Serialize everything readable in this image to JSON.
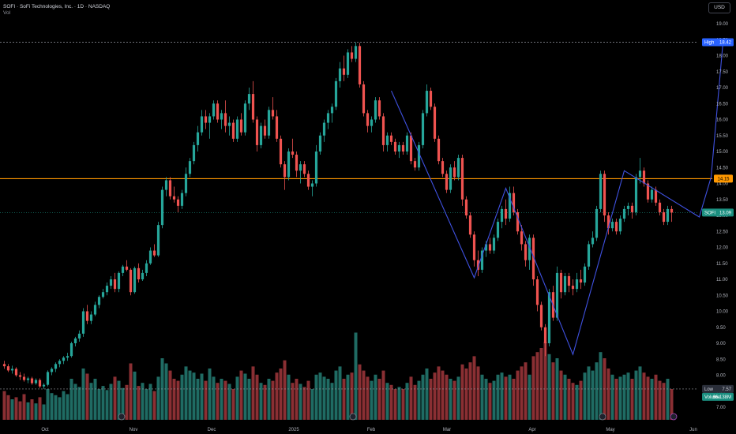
{
  "header": {
    "title": "SOFI · SoFi Technologies, Inc. · 1D · NASDAQ",
    "vol_label": "Vol",
    "currency_button": "USD"
  },
  "colors": {
    "up": "#26a69a",
    "down": "#ef5350",
    "up_vol": "#1f6b63",
    "down_vol": "#8a2f33",
    "hline": "#ff9800",
    "pattern": "#3f51e0",
    "last_price": "#1b8f80",
    "high_label": "#2962ff"
  },
  "chart_data": {
    "type": "candlestick",
    "y_axis": {
      "min": 7.0,
      "max": 19.0,
      "step": 0.5,
      "side": "right"
    },
    "x_labels": [
      "Oct",
      "Nov",
      "Dec",
      "2025",
      "Feb",
      "Mar",
      "Apr",
      "May",
      "Jun"
    ],
    "grid": false,
    "horizontal_level": {
      "value": 14.15,
      "label": "14.15"
    },
    "high": {
      "label": "High",
      "value": "18.42",
      "price": 18.42
    },
    "low": {
      "label": "Low",
      "value": "7.57",
      "price": 7.57
    },
    "last_price": {
      "label": "SOFI",
      "value": "13.09",
      "price": 13.09
    },
    "volume": {
      "label": "Volume",
      "value": "66.138M"
    },
    "ohlc": [
      [
        8.35,
        8.45,
        8.2,
        8.28
      ],
      [
        8.28,
        8.35,
        8.1,
        8.15
      ],
      [
        8.15,
        8.3,
        8.05,
        8.2
      ],
      [
        8.2,
        8.25,
        7.95,
        8.0
      ],
      [
        8.0,
        8.1,
        7.85,
        7.95
      ],
      [
        7.95,
        8.05,
        7.8,
        7.85
      ],
      [
        7.85,
        7.95,
        7.75,
        7.9
      ],
      [
        7.9,
        7.95,
        7.7,
        7.75
      ],
      [
        7.75,
        7.9,
        7.7,
        7.85
      ],
      [
        7.85,
        7.9,
        7.6,
        7.65
      ],
      [
        7.65,
        7.75,
        7.57,
        7.7
      ],
      [
        7.7,
        8.15,
        7.65,
        8.1
      ],
      [
        8.1,
        8.25,
        8.0,
        8.2
      ],
      [
        8.2,
        8.4,
        8.1,
        8.35
      ],
      [
        8.35,
        8.5,
        8.25,
        8.45
      ],
      [
        8.45,
        8.6,
        8.35,
        8.55
      ],
      [
        8.55,
        8.7,
        8.45,
        8.6
      ],
      [
        8.6,
        9.05,
        8.55,
        9.0
      ],
      [
        9.0,
        9.2,
        8.9,
        9.15
      ],
      [
        9.15,
        9.4,
        9.05,
        9.3
      ],
      [
        9.3,
        10.1,
        9.2,
        10.0
      ],
      [
        10.0,
        10.2,
        9.6,
        9.7
      ],
      [
        9.7,
        10.0,
        9.6,
        9.9
      ],
      [
        9.9,
        10.3,
        9.85,
        10.2
      ],
      [
        10.2,
        10.5,
        10.1,
        10.45
      ],
      [
        10.45,
        10.7,
        10.4,
        10.6
      ],
      [
        10.6,
        10.9,
        10.5,
        10.8
      ],
      [
        10.8,
        11.1,
        10.7,
        11.0
      ],
      [
        11.0,
        11.2,
        10.6,
        10.7
      ],
      [
        10.7,
        11.25,
        10.6,
        11.2
      ],
      [
        11.2,
        11.45,
        11.1,
        11.4
      ],
      [
        11.4,
        11.6,
        11.25,
        11.3
      ],
      [
        11.3,
        11.35,
        10.5,
        10.6
      ],
      [
        10.6,
        11.4,
        10.55,
        11.35
      ],
      [
        11.35,
        11.5,
        10.9,
        11.0
      ],
      [
        11.0,
        11.3,
        10.95,
        11.2
      ],
      [
        11.2,
        11.6,
        11.1,
        11.5
      ],
      [
        11.5,
        12.0,
        11.45,
        11.9
      ],
      [
        11.9,
        12.1,
        11.7,
        11.75
      ],
      [
        11.75,
        12.8,
        11.7,
        12.7
      ],
      [
        12.7,
        13.9,
        12.6,
        13.8
      ],
      [
        13.8,
        14.2,
        13.6,
        14.1
      ],
      [
        14.1,
        14.2,
        13.5,
        13.6
      ],
      [
        13.6,
        13.9,
        13.4,
        13.5
      ],
      [
        13.5,
        13.6,
        13.1,
        13.3
      ],
      [
        13.3,
        13.8,
        13.2,
        13.7
      ],
      [
        13.7,
        14.5,
        13.6,
        14.3
      ],
      [
        14.3,
        14.8,
        14.2,
        14.7
      ],
      [
        14.7,
        15.3,
        14.6,
        15.2
      ],
      [
        15.2,
        15.8,
        15.0,
        15.6
      ],
      [
        15.6,
        16.3,
        15.5,
        16.1
      ],
      [
        16.1,
        16.3,
        15.7,
        15.9
      ],
      [
        15.9,
        16.2,
        15.4,
        16.1
      ],
      [
        16.1,
        16.6,
        16.0,
        16.5
      ],
      [
        16.5,
        16.6,
        15.9,
        16.0
      ],
      [
        16.0,
        16.3,
        15.7,
        16.2
      ],
      [
        16.2,
        16.6,
        15.6,
        15.8
      ],
      [
        15.8,
        16.1,
        15.5,
        15.9
      ],
      [
        15.9,
        16.0,
        15.3,
        15.4
      ],
      [
        15.4,
        16.1,
        15.3,
        16.0
      ],
      [
        16.0,
        16.2,
        15.5,
        15.6
      ],
      [
        15.6,
        16.6,
        15.5,
        16.5
      ],
      [
        16.5,
        17.0,
        16.3,
        16.8
      ],
      [
        16.8,
        17.2,
        15.9,
        16.0
      ],
      [
        16.0,
        16.1,
        15.0,
        15.2
      ],
      [
        15.2,
        15.9,
        15.1,
        15.8
      ],
      [
        15.8,
        16.0,
        15.4,
        15.5
      ],
      [
        15.5,
        16.4,
        15.4,
        16.3
      ],
      [
        16.3,
        16.7,
        16.0,
        16.1
      ],
      [
        16.1,
        16.3,
        15.3,
        15.4
      ],
      [
        15.4,
        15.5,
        14.5,
        14.6
      ],
      [
        14.6,
        14.7,
        13.8,
        14.2
      ],
      [
        14.2,
        15.1,
        14.1,
        15.0
      ],
      [
        15.0,
        15.4,
        14.8,
        14.9
      ],
      [
        14.9,
        15.0,
        14.2,
        14.4
      ],
      [
        14.4,
        14.7,
        14.0,
        14.6
      ],
      [
        14.6,
        14.7,
        14.2,
        14.3
      ],
      [
        14.3,
        14.4,
        13.8,
        13.9
      ],
      [
        13.9,
        14.1,
        13.6,
        14.0
      ],
      [
        14.0,
        15.2,
        13.9,
        15.0
      ],
      [
        15.0,
        15.6,
        14.9,
        15.5
      ],
      [
        15.5,
        16.0,
        15.3,
        15.9
      ],
      [
        15.9,
        16.3,
        15.7,
        16.2
      ],
      [
        16.2,
        16.5,
        15.9,
        16.4
      ],
      [
        16.4,
        17.3,
        16.3,
        17.2
      ],
      [
        17.2,
        17.8,
        17.0,
        17.6
      ],
      [
        17.6,
        18.0,
        17.2,
        17.4
      ],
      [
        17.4,
        18.2,
        17.3,
        18.1
      ],
      [
        18.1,
        18.3,
        17.8,
        17.9
      ],
      [
        17.9,
        18.42,
        17.8,
        18.3
      ],
      [
        18.3,
        18.4,
        17.0,
        17.1
      ],
      [
        17.1,
        17.2,
        16.1,
        16.2
      ],
      [
        16.2,
        16.3,
        15.6,
        15.8
      ],
      [
        15.8,
        16.1,
        15.6,
        16.0
      ],
      [
        16.0,
        16.7,
        15.9,
        16.6
      ],
      [
        16.6,
        16.7,
        16.0,
        16.1
      ],
      [
        16.1,
        16.2,
        15.0,
        15.2
      ],
      [
        15.2,
        15.6,
        15.0,
        15.5
      ],
      [
        15.5,
        15.6,
        15.2,
        15.3
      ],
      [
        15.3,
        15.4,
        14.9,
        15.0
      ],
      [
        15.0,
        15.3,
        14.8,
        15.2
      ],
      [
        15.2,
        15.3,
        14.9,
        15.0
      ],
      [
        15.0,
        15.6,
        14.9,
        15.5
      ],
      [
        15.5,
        15.6,
        14.6,
        14.7
      ],
      [
        14.7,
        14.8,
        14.4,
        14.5
      ],
      [
        14.5,
        15.3,
        14.4,
        15.2
      ],
      [
        15.2,
        16.3,
        15.1,
        16.2
      ],
      [
        16.2,
        17.1,
        16.1,
        16.9
      ],
      [
        16.9,
        17.0,
        16.3,
        16.4
      ],
      [
        16.4,
        16.5,
        15.3,
        15.4
      ],
      [
        15.4,
        15.5,
        14.6,
        14.7
      ],
      [
        14.7,
        14.8,
        14.2,
        14.3
      ],
      [
        14.3,
        14.4,
        13.7,
        13.8
      ],
      [
        13.8,
        14.6,
        13.7,
        14.5
      ],
      [
        14.5,
        14.7,
        14.1,
        14.2
      ],
      [
        14.2,
        14.9,
        14.1,
        14.8
      ],
      [
        14.8,
        14.9,
        13.3,
        13.5
      ],
      [
        13.5,
        13.6,
        12.9,
        13.0
      ],
      [
        13.0,
        13.1,
        12.3,
        12.4
      ],
      [
        12.4,
        12.5,
        11.4,
        11.6
      ],
      [
        11.6,
        11.9,
        11.1,
        11.3
      ],
      [
        11.3,
        12.0,
        11.2,
        11.9
      ],
      [
        11.9,
        12.2,
        11.7,
        12.1
      ],
      [
        12.1,
        12.3,
        11.8,
        11.9
      ],
      [
        11.9,
        12.4,
        11.8,
        12.3
      ],
      [
        12.3,
        12.9,
        12.2,
        12.8
      ],
      [
        12.8,
        13.3,
        12.6,
        13.2
      ],
      [
        13.2,
        13.5,
        12.7,
        12.9
      ],
      [
        12.9,
        13.9,
        12.8,
        13.7
      ],
      [
        13.7,
        13.9,
        13.0,
        13.1
      ],
      [
        13.1,
        13.2,
        12.4,
        12.5
      ],
      [
        12.5,
        12.7,
        11.9,
        12.1
      ],
      [
        12.1,
        12.2,
        11.4,
        11.6
      ],
      [
        11.6,
        12.4,
        11.3,
        12.3
      ],
      [
        12.3,
        12.4,
        10.8,
        11.0
      ],
      [
        11.0,
        11.1,
        10.0,
        10.2
      ],
      [
        10.2,
        10.3,
        9.4,
        9.5
      ],
      [
        9.5,
        9.6,
        8.6,
        9.0
      ],
      [
        9.0,
        10.7,
        8.9,
        10.6
      ],
      [
        10.6,
        10.8,
        9.7,
        9.8
      ],
      [
        9.8,
        11.4,
        9.7,
        11.2
      ],
      [
        11.2,
        11.3,
        10.4,
        10.6
      ],
      [
        10.6,
        11.2,
        10.5,
        11.1
      ],
      [
        11.1,
        11.2,
        10.6,
        10.8
      ],
      [
        10.8,
        11.0,
        10.5,
        10.7
      ],
      [
        10.7,
        11.2,
        10.6,
        11.0
      ],
      [
        11.0,
        11.3,
        10.7,
        10.9
      ],
      [
        10.9,
        11.5,
        10.8,
        11.4
      ],
      [
        11.4,
        12.2,
        11.3,
        12.1
      ],
      [
        12.1,
        12.5,
        12.0,
        12.3
      ],
      [
        12.3,
        13.3,
        12.2,
        13.2
      ],
      [
        13.2,
        14.4,
        13.1,
        14.3
      ],
      [
        14.3,
        14.4,
        12.8,
        13.0
      ],
      [
        13.0,
        13.1,
        12.4,
        12.6
      ],
      [
        12.6,
        12.9,
        12.5,
        12.8
      ],
      [
        12.8,
        12.9,
        12.4,
        12.5
      ],
      [
        12.5,
        13.0,
        12.4,
        12.9
      ],
      [
        12.9,
        13.3,
        12.8,
        13.2
      ],
      [
        13.2,
        13.4,
        13.0,
        13.3
      ],
      [
        13.3,
        13.4,
        12.9,
        13.1
      ],
      [
        13.1,
        14.3,
        13.0,
        14.2
      ],
      [
        14.2,
        14.8,
        14.0,
        14.4
      ],
      [
        14.4,
        14.5,
        13.9,
        14.0
      ],
      [
        14.0,
        14.1,
        13.4,
        13.5
      ],
      [
        13.5,
        13.9,
        13.4,
        13.8
      ],
      [
        13.8,
        13.9,
        13.3,
        13.4
      ],
      [
        13.4,
        13.5,
        13.0,
        13.1
      ],
      [
        13.1,
        13.2,
        12.7,
        12.8
      ],
      [
        12.8,
        13.3,
        12.7,
        13.2
      ],
      [
        13.2,
        13.3,
        12.8,
        13.09
      ]
    ],
    "volume_pct": [
      28,
      24,
      20,
      22,
      18,
      25,
      17,
      20,
      16,
      22,
      15,
      30,
      26,
      24,
      22,
      28,
      25,
      40,
      35,
      32,
      50,
      45,
      36,
      40,
      30,
      33,
      29,
      35,
      42,
      38,
      31,
      34,
      55,
      47,
      33,
      36,
      30,
      35,
      28,
      42,
      60,
      55,
      48,
      40,
      38,
      44,
      52,
      48,
      46,
      40,
      45,
      38,
      50,
      42,
      36,
      40,
      38,
      35,
      30,
      42,
      48,
      45,
      40,
      52,
      44,
      36,
      34,
      40,
      38,
      46,
      50,
      58,
      44,
      36,
      40,
      35,
      32,
      38,
      30,
      44,
      46,
      42,
      40,
      36,
      48,
      52,
      40,
      44,
      46,
      85,
      54,
      48,
      42,
      38,
      44,
      40,
      48,
      36,
      34,
      30,
      32,
      30,
      36,
      42,
      34,
      38,
      44,
      50,
      40,
      46,
      52,
      48,
      44,
      40,
      38,
      42,
      54,
      50,
      56,
      62,
      52,
      44,
      40,
      36,
      38,
      44,
      46,
      42,
      44,
      40,
      48,
      52,
      56,
      44,
      62,
      66,
      70,
      76,
      64,
      56,
      60,
      48,
      44,
      40,
      36,
      34,
      38,
      46,
      52,
      48,
      56,
      66,
      60,
      50,
      44,
      40,
      42,
      44,
      46,
      40,
      48,
      52,
      46,
      42,
      40,
      44,
      38,
      36,
      40,
      30
    ],
    "pattern_points": [
      [
        98,
        16.9
      ],
      [
        119,
        11.05
      ],
      [
        127,
        13.85
      ],
      [
        144,
        8.65
      ],
      [
        157,
        14.4
      ],
      [
        176,
        12.95
      ],
      [
        179,
        14.2
      ],
      [
        182,
        18.42
      ]
    ]
  }
}
